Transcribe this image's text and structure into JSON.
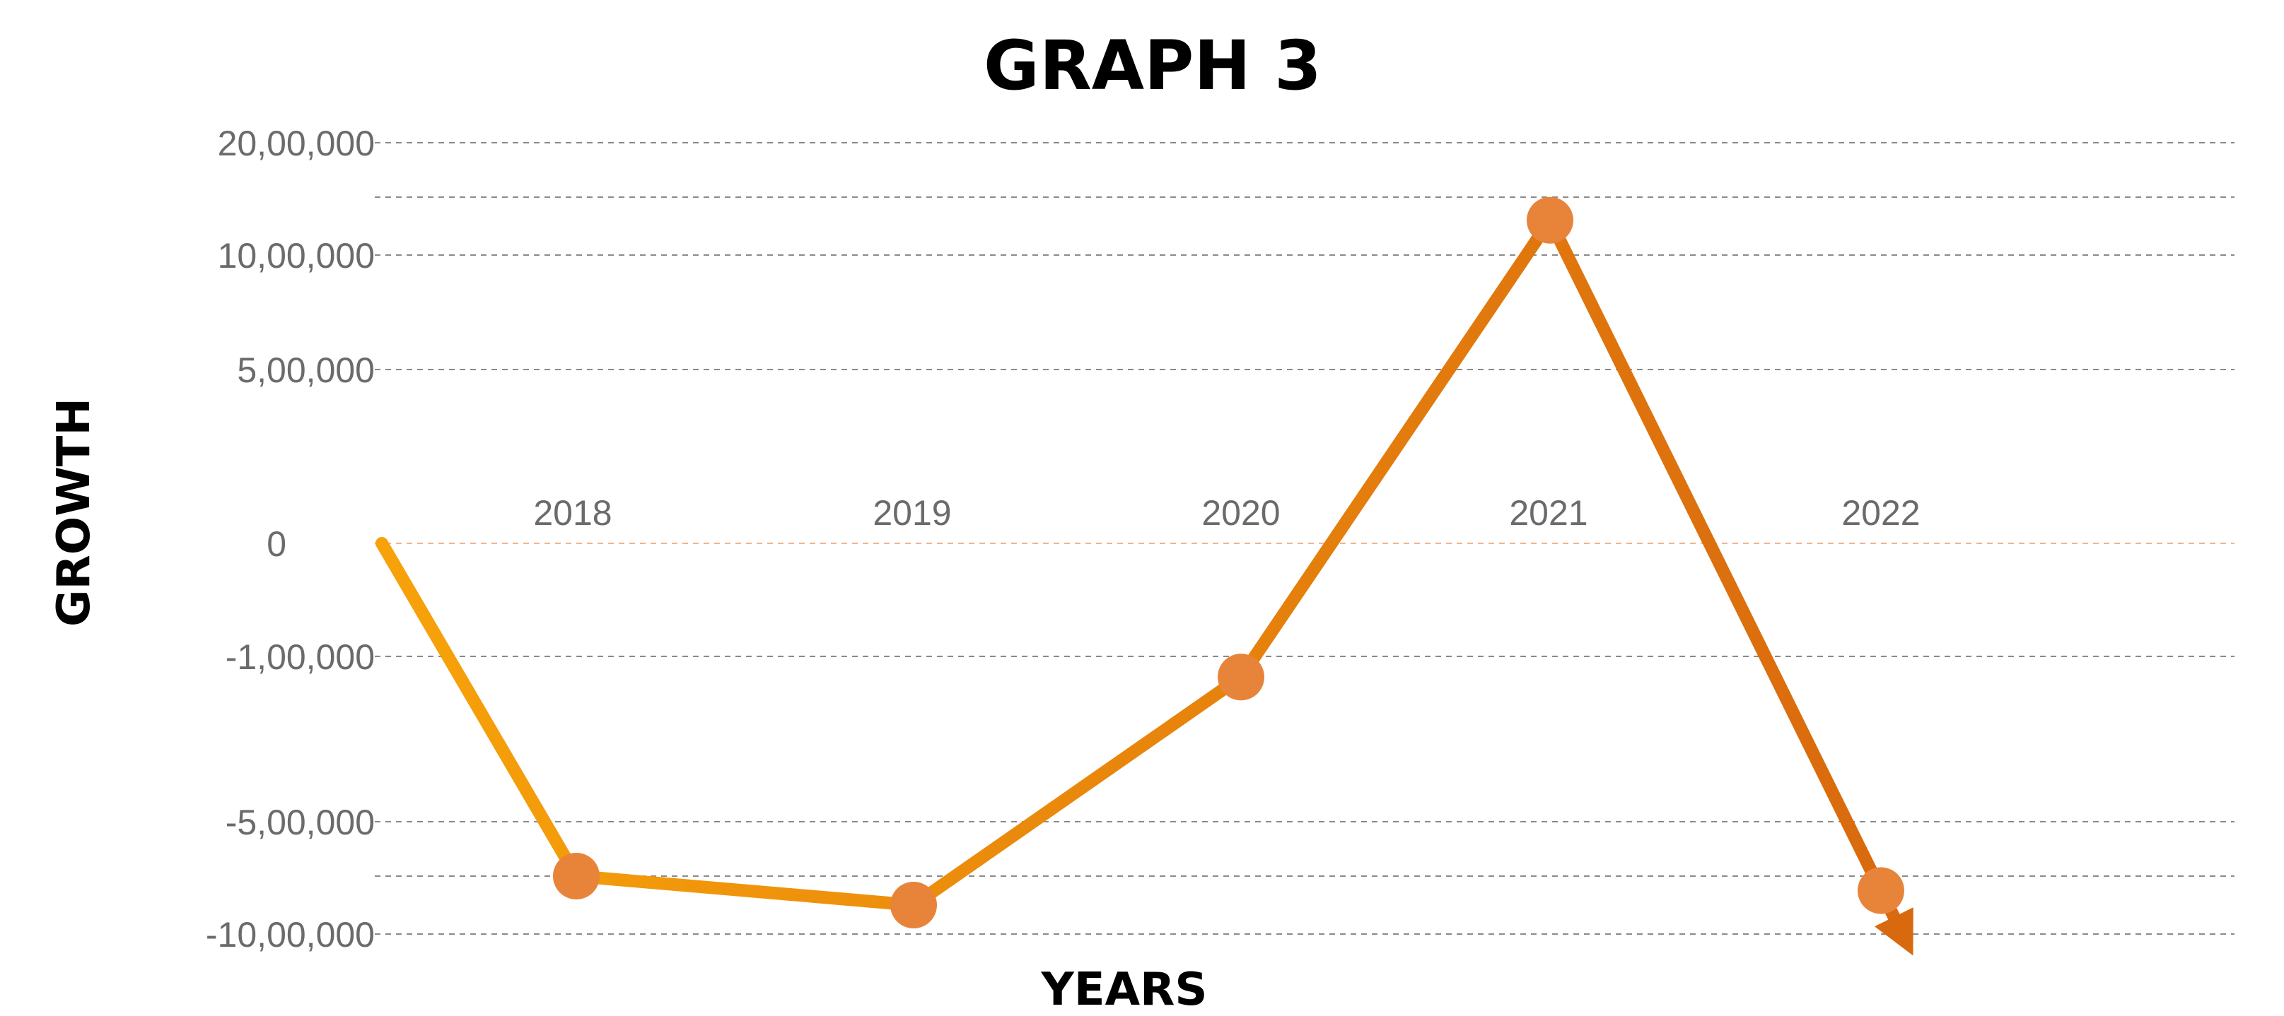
{
  "chart_data": {
    "type": "line",
    "title": "GRAPH 3",
    "xlabel": "YEARS",
    "ylabel": "GROWTH",
    "y_tick_labels": [
      {
        "value": 2000000,
        "label": "20,00,000"
      },
      {
        "value": 1000000,
        "label": "10,00,000"
      },
      {
        "value": 500000,
        "label": "5,00,000"
      },
      {
        "value": 0,
        "label": "0"
      },
      {
        "value": -100000,
        "label": "-1,00,000"
      },
      {
        "value": -500000,
        "label": "-5,00,000"
      },
      {
        "value": -1000000,
        "label": "-10,00,000"
      }
    ],
    "gridlines": [
      2000000,
      1500000,
      1000000,
      500000,
      0,
      -100000,
      -500000,
      -800000,
      -1000000
    ],
    "categories": [
      "2018",
      "2019",
      "2020",
      "2021",
      "2022"
    ],
    "series": [
      {
        "color": "#e8843a",
        "line_colors": [
          "#f7a20a",
          "#d9690e"
        ],
        "start": 0,
        "values": [
          -800000,
          -900000,
          -150000,
          1300000,
          -850000
        ]
      }
    ],
    "grid": true,
    "legend": "none"
  }
}
